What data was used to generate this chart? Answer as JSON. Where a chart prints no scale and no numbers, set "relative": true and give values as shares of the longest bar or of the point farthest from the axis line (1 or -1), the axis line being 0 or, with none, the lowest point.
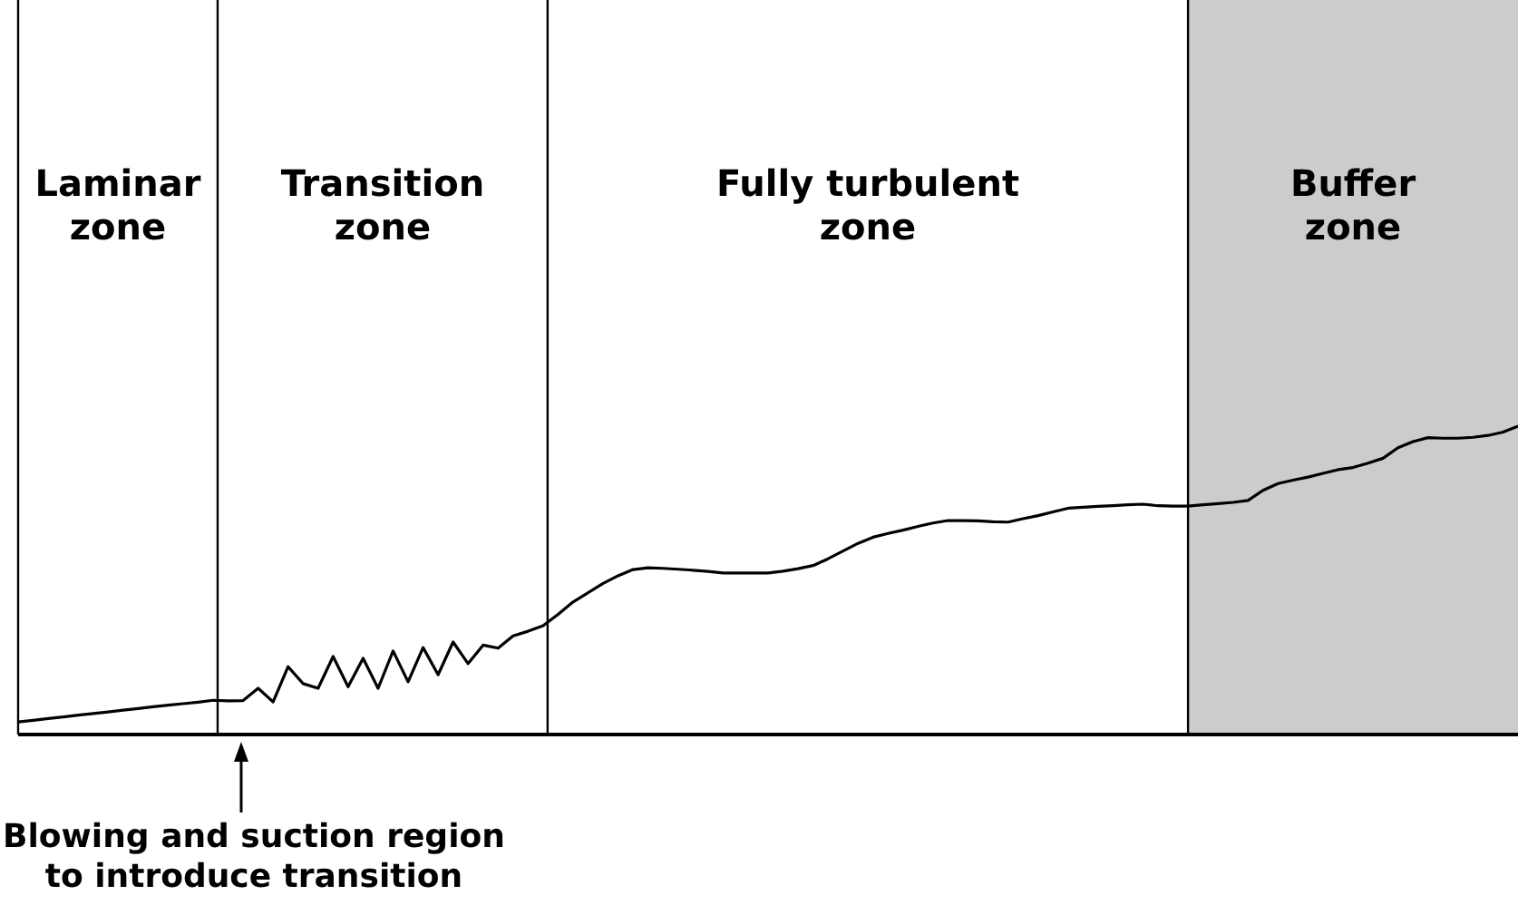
{
  "chart_data": {
    "type": "line",
    "relative": true,
    "categories": [
      null,
      null,
      null,
      null,
      null,
      null,
      null,
      null,
      null,
      null,
      null,
      null,
      null,
      null,
      null,
      null,
      null,
      null,
      null,
      null,
      null,
      null,
      null,
      null,
      null,
      null,
      null,
      null,
      null,
      null,
      null,
      null,
      null,
      null,
      null,
      null,
      null,
      null,
      null,
      null,
      null,
      null,
      null,
      null,
      null,
      null,
      null,
      null,
      null,
      null,
      null,
      null,
      null,
      null,
      null,
      null,
      null,
      null,
      null,
      null,
      null,
      null,
      null,
      null,
      null,
      null,
      null,
      null,
      null,
      null,
      null,
      null,
      null,
      null,
      null,
      null,
      null,
      null,
      null,
      null,
      null,
      null,
      null,
      null,
      null,
      null,
      null,
      null,
      null,
      null,
      null,
      null,
      null,
      null,
      null,
      null,
      null,
      null,
      null,
      null,
      null
    ],
    "series": [
      {
        "color": "#000000",
        "values": [
          0.041,
          0.046,
          0.052,
          0.057,
          0.063,
          0.068,
          0.073,
          0.079,
          0.084,
          0.09,
          0.095,
          0.1,
          0.105,
          0.111,
          0.109,
          0.11,
          0.15,
          0.106,
          0.22,
          0.165,
          0.15,
          0.253,
          0.155,
          0.247,
          0.15,
          0.271,
          0.171,
          0.282,
          0.194,
          0.3,
          0.23,
          0.29,
          0.28,
          0.32,
          0.335,
          0.353,
          0.39,
          0.43,
          0.46,
          0.49,
          0.515,
          0.535,
          0.541,
          0.539,
          0.536,
          0.533,
          0.529,
          0.524,
          0.524,
          0.524,
          0.524,
          0.53,
          0.538,
          0.548,
          0.57,
          0.595,
          0.62,
          0.64,
          0.652,
          0.663,
          0.675,
          0.686,
          0.694,
          0.694,
          0.693,
          0.69,
          0.689,
          0.7,
          0.71,
          0.722,
          0.734,
          0.737,
          0.74,
          0.742,
          0.745,
          0.747,
          0.742,
          0.741,
          0.741,
          0.745,
          0.749,
          0.753,
          0.759,
          0.792,
          0.814,
          0.825,
          0.835,
          0.847,
          0.859,
          0.866,
          0.88,
          0.896,
          0.93,
          0.95,
          0.963,
          0.961,
          0.961,
          0.964,
          0.97,
          0.981,
          1
        ]
      }
    ],
    "annotations": [
      "Laminar\nzone",
      "Transition\nzone",
      "Fully turbulent\nzone",
      "Buffer\nzone",
      "Blowing and suction region\nto introduce transition"
    ],
    "line_style": "solid",
    "marker": "none"
  }
}
